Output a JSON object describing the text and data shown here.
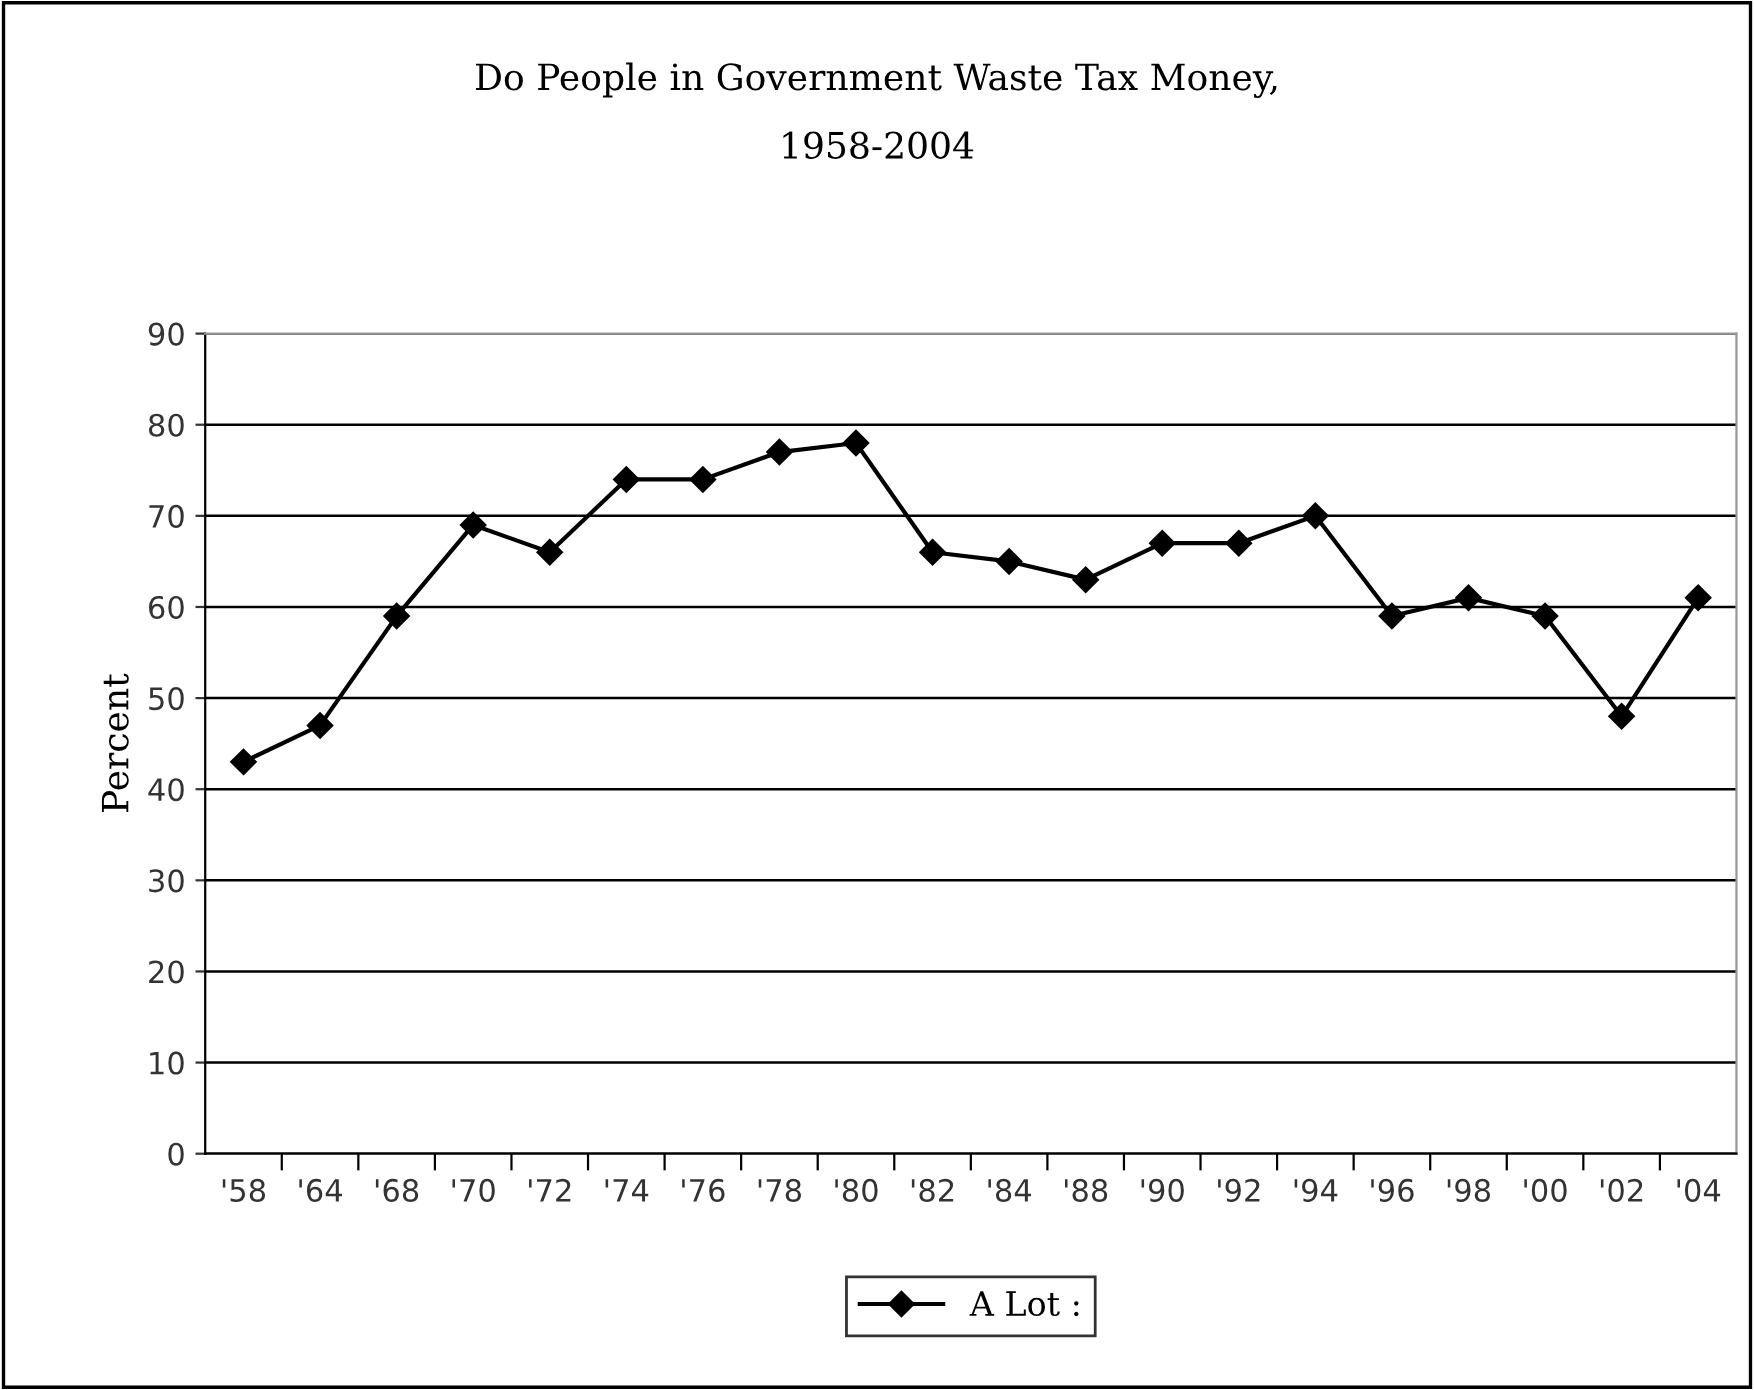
{
  "chart_data": {
    "type": "line",
    "title": "Do People in Government Waste Tax Money,\n1958-2004",
    "ylabel": "Percent",
    "categories": [
      "'58",
      "'64",
      "'68",
      "'70",
      "'72",
      "'74",
      "'76",
      "'78",
      "'80",
      "'82",
      "'84",
      "'88",
      "'90",
      "'92",
      "'94",
      "'96",
      "'98",
      "'00",
      "'02",
      "'04"
    ],
    "series": [
      {
        "name": "A Lot :",
        "color": "#000000",
        "values": [
          43,
          47,
          59,
          69,
          66,
          74,
          74,
          77,
          78,
          66,
          65,
          63,
          67,
          67,
          70,
          59,
          61,
          59,
          48,
          61
        ]
      }
    ],
    "ylim": [
      0,
      90
    ],
    "yticks": [
      0,
      10,
      20,
      30,
      40,
      50,
      60,
      70,
      80,
      90
    ],
    "grid": "y",
    "legend": "bottom",
    "marker": "diamond",
    "line_style": "solid"
  }
}
